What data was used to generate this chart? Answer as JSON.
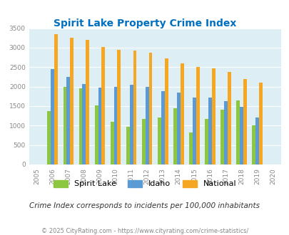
{
  "title": "Spirit Lake Property Crime Index",
  "years": [
    2005,
    2006,
    2007,
    2008,
    2009,
    2010,
    2011,
    2012,
    2013,
    2014,
    2015,
    2016,
    2017,
    2018,
    2019,
    2020
  ],
  "spirit_lake": [
    null,
    1375,
    2000,
    1950,
    1525,
    1100,
    975,
    1175,
    1200,
    1450,
    825,
    1175,
    1400,
    1650,
    1000,
    null
  ],
  "idaho": [
    null,
    2450,
    2250,
    2075,
    1975,
    2000,
    2050,
    2000,
    1875,
    1850,
    1725,
    1725,
    1625,
    1475,
    1200,
    null
  ],
  "national": [
    null,
    3350,
    3250,
    3200,
    3025,
    2950,
    2925,
    2875,
    2725,
    2600,
    2500,
    2475,
    2375,
    2200,
    2100,
    null
  ],
  "spirit_lake_color": "#8dc63f",
  "idaho_color": "#5b9bd5",
  "national_color": "#f5a623",
  "bg_color": "#ddeef5",
  "title_color": "#0070c0",
  "ylim": [
    0,
    3500
  ],
  "yticks": [
    0,
    500,
    1000,
    1500,
    2000,
    2500,
    3000,
    3500
  ],
  "subtitle": "Crime Index corresponds to incidents per 100,000 inhabitants",
  "footer": "© 2025 CityRating.com - https://www.cityrating.com/crime-statistics/",
  "legend_labels": [
    "Spirit Lake",
    "Idaho",
    "National"
  ],
  "bar_width": 0.22,
  "xlim": [
    2004.5,
    2020.5
  ]
}
